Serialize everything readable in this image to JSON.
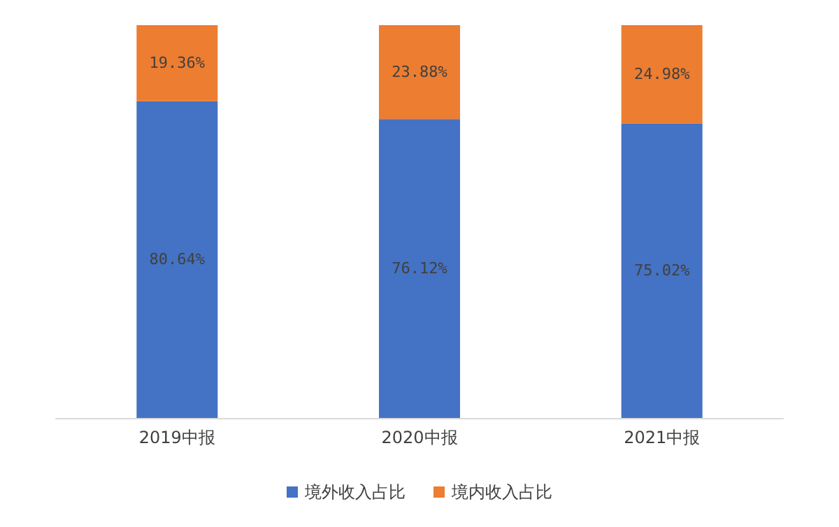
{
  "chart_data": {
    "type": "bar",
    "stacked": true,
    "categories": [
      "2019中报",
      "2020中报",
      "2021中报"
    ],
    "series": [
      {
        "name": "境外收入占比",
        "color": "#4472c4",
        "values": [
          80.64,
          76.12,
          75.02
        ],
        "value_labels": [
          "80.64%",
          "76.12%",
          "75.02%"
        ]
      },
      {
        "name": "境内收入占比",
        "color": "#ed7d31",
        "values": [
          19.36,
          23.88,
          24.98
        ],
        "value_labels": [
          "19.36%",
          "23.88%",
          "24.98%"
        ]
      }
    ],
    "ylim": [
      0,
      100
    ],
    "tick_labels": "x",
    "legend": "bottom",
    "grid": false
  }
}
